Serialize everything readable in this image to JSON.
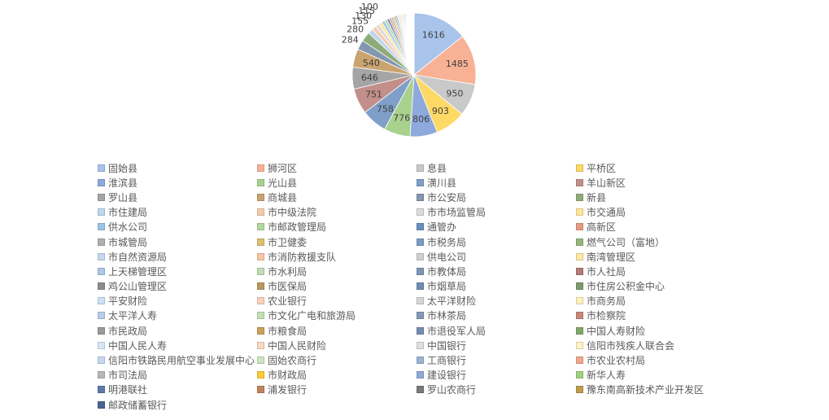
{
  "chart_data": {
    "type": "pie",
    "title": "",
    "categories": [
      "固始县",
      "狮河区",
      "息县",
      "平桥区",
      "淮滨县",
      "光山县",
      "潢川县",
      "羊山新区",
      "罗山县",
      "商城县",
      "市公安局",
      "新县",
      "市住建局",
      "市中级法院",
      "市市场监管局",
      "市交通局",
      "供水公司",
      "市邮政管理局",
      "通管办",
      "高新区",
      "市城管局",
      "市卫健委",
      "市税务局",
      "燃气公司（富地）",
      "市自然资源局",
      "市消防救援支队",
      "供电公司",
      "南湾管理区",
      "上天梯管理区",
      "市水利局",
      "市教体局",
      "市人社局",
      "鸡公山管理区",
      "市医保局",
      "市烟草局",
      "市住房公积金中心",
      "平安财险",
      "农业银行",
      "太平洋财险",
      "市商务局",
      "太平洋人寿",
      "市文化广电和旅游局",
      "市林茶局",
      "市检察院",
      "市民政局",
      "市粮食局",
      "市退役军人局",
      "中国人寿财险",
      "中国人民人寿",
      "中国人民财险",
      "中国银行",
      "信阳市残疾人联合会",
      "信阳市铁路民用航空事业发展中心",
      "固始农商行",
      "工商银行",
      "市农业农村局",
      "市司法局",
      "市财政局",
      "建设银行",
      "新华人寿",
      "明港联社",
      "浦发银行",
      "罗山农商行",
      "豫东南高新技术产业开发区",
      "邮政储蓄银行"
    ],
    "values": [
      1616,
      1485,
      950,
      903,
      806,
      776,
      758,
      751,
      646,
      540,
      284,
      280,
      155,
      130,
      115,
      100,
      90,
      80,
      70,
      60,
      55,
      50,
      45,
      40,
      38,
      36,
      34,
      32,
      30,
      28,
      26,
      24,
      22,
      20,
      18,
      16,
      15,
      14,
      13,
      12,
      11,
      10,
      9,
      8,
      8,
      7,
      7,
      6,
      6,
      5,
      5,
      5,
      4,
      4,
      4,
      3,
      3,
      3,
      2,
      2,
      2,
      2,
      1,
      1,
      1
    ],
    "labels": [
      "1616",
      "1485",
      "950",
      "903",
      "806",
      "776",
      "758",
      "751",
      "646",
      "540",
      "284",
      "280",
      "155",
      "130",
      "115",
      "100"
    ],
    "colors": [
      "#a9c4eb",
      "#f8b194",
      "#c9c9c9",
      "#ffd966",
      "#8ea9db",
      "#a9d18e",
      "#7f9fc8",
      "#c28f8a",
      "#a5a5a5",
      "#c9a46e",
      "#8497b0",
      "#8fac78",
      "#bdd7ee",
      "#f8cbad",
      "#dbdbdb",
      "#ffe699",
      "#9dc3e6",
      "#b4d7a0",
      "#6c8ebf",
      "#e59a83",
      "#b0b0b0",
      "#dcbf70",
      "#7d9bc3",
      "#93b67a",
      "#c5daf2",
      "#f6c6a7",
      "#d0d0d0",
      "#fde7a3",
      "#adc7e6",
      "#bfddb0",
      "#7c96b8",
      "#b27b75",
      "#8c8c8c",
      "#b89a5e",
      "#6f8bb0",
      "#7d9a6c",
      "#cde0f5",
      "#fbd2bb",
      "#d6d6d6",
      "#fff0bd",
      "#b7cfec",
      "#c3e0b4",
      "#8399b6",
      "#c98679",
      "#9a9a9a",
      "#c8a25a",
      "#758db2",
      "#7fa76a",
      "#d7e6f7",
      "#fcd9c3",
      "#e0e0e0",
      "#fff3c6",
      "#c4d8ef",
      "#cce6bf",
      "#9bb3d3",
      "#f2a88c",
      "#b8b8b8",
      "#ffcc33",
      "#8eaad6",
      "#9fd07e",
      "#5b79a6",
      "#c0835a",
      "#7a7a7a",
      "#bf9c4d",
      "#4a6590"
    ],
    "legend_position": "bottom"
  }
}
